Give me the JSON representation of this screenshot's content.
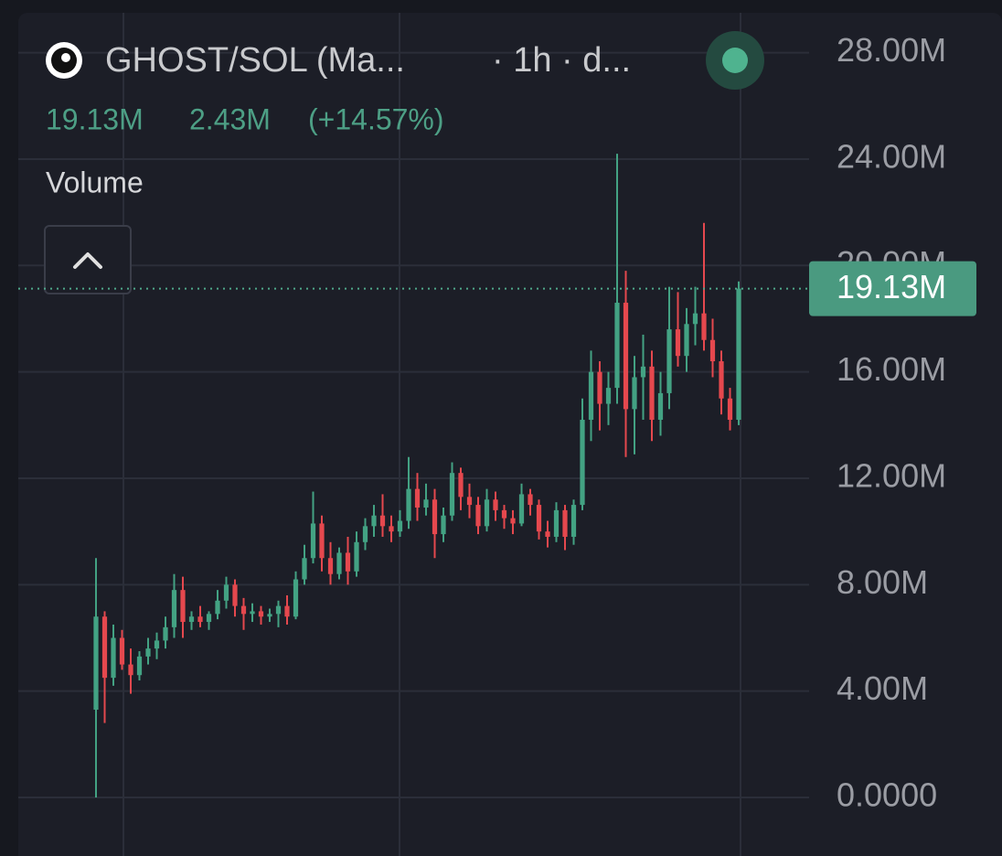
{
  "header": {
    "pair": "GHOST/SOL (Ma...",
    "interval": "· 1h · d...",
    "last": "19.13M",
    "change": "2.43M",
    "change_pct": "(+14.57%)",
    "indicator": "Volume"
  },
  "chart_data": {
    "type": "candlestick",
    "up_color": "#43a283",
    "down_color": "#e5484e",
    "ylim": [
      -2.2,
      29.5
    ],
    "yticks": [
      {
        "value": 0,
        "label": "0.0000"
      },
      {
        "value": 4,
        "label": "4.00M"
      },
      {
        "value": 8,
        "label": "8.00M"
      },
      {
        "value": 12,
        "label": "12.00M"
      },
      {
        "value": 16,
        "label": "16.00M"
      },
      {
        "value": 20,
        "label": "20.00M"
      },
      {
        "value": 24,
        "label": "24.00M"
      },
      {
        "value": 28,
        "label": "28.00M"
      }
    ],
    "grid": true,
    "price_line": {
      "value": 19.13,
      "label": "19.13M"
    },
    "open": [
      3.3,
      6.8,
      4.5,
      6.0,
      5.0,
      4.6,
      5.3,
      5.6,
      5.9,
      6.4,
      7.8,
      6.6,
      6.8,
      6.6,
      6.9,
      7.4,
      8.0,
      7.2,
      6.9,
      7.0,
      6.8,
      6.9,
      7.2,
      6.8,
      8.2,
      9.0,
      10.3,
      9.0,
      8.4,
      9.2,
      8.5,
      9.6,
      10.2,
      10.6,
      10.2,
      10.0,
      10.4,
      11.6,
      10.9,
      11.2,
      9.9,
      10.6,
      12.2,
      11.3,
      11.0,
      10.2,
      11.2,
      10.8,
      10.5,
      10.3,
      11.4,
      11.0,
      10.0,
      9.8,
      10.8,
      9.8,
      11.0,
      14.2,
      16.0,
      14.8,
      15.4,
      18.6,
      14.6,
      15.8,
      16.2,
      14.2,
      15.2,
      17.6,
      16.6,
      17.8,
      18.2,
      17.2,
      16.4,
      15.0,
      14.2
    ],
    "high": [
      9.0,
      7.0,
      6.5,
      6.3,
      5.6,
      5.5,
      6.0,
      6.2,
      6.8,
      8.4,
      8.3,
      7.0,
      7.2,
      7.0,
      7.8,
      8.3,
      8.2,
      7.5,
      7.3,
      7.2,
      7.1,
      7.4,
      7.6,
      8.5,
      9.5,
      11.5,
      10.6,
      9.6,
      9.4,
      9.8,
      10.0,
      10.5,
      11.0,
      11.4,
      10.6,
      10.8,
      12.8,
      12.2,
      11.8,
      11.6,
      10.9,
      12.6,
      12.4,
      11.8,
      11.3,
      11.6,
      11.5,
      11.0,
      10.8,
      11.8,
      11.6,
      11.2,
      10.4,
      11.1,
      11.0,
      11.2,
      15.0,
      16.8,
      16.4,
      16.0,
      24.2,
      19.8,
      16.6,
      17.4,
      16.8,
      16.0,
      19.2,
      19.0,
      18.4,
      19.2,
      21.6,
      18.0,
      16.8,
      15.4,
      19.4
    ],
    "low": [
      0.0,
      2.8,
      4.2,
      4.8,
      3.9,
      4.4,
      5.0,
      5.2,
      5.6,
      6.0,
      6.0,
      6.3,
      6.4,
      6.3,
      6.7,
      7.1,
      6.8,
      6.3,
      6.6,
      6.5,
      6.6,
      6.4,
      6.5,
      6.7,
      8.0,
      8.8,
      8.5,
      8.0,
      8.2,
      8.0,
      8.3,
      9.3,
      9.8,
      9.8,
      9.6,
      9.8,
      10.1,
      10.4,
      10.6,
      9.0,
      9.6,
      10.4,
      10.8,
      10.5,
      9.9,
      10.0,
      10.4,
      10.1,
      9.9,
      10.2,
      10.6,
      9.7,
      9.4,
      9.6,
      9.3,
      9.5,
      10.8,
      13.4,
      13.8,
      14.0,
      14.8,
      12.8,
      12.9,
      14.2,
      13.4,
      13.6,
      14.6,
      16.2,
      16.0,
      17.0,
      16.8,
      15.8,
      14.4,
      13.8,
      14.0
    ],
    "close": [
      6.8,
      4.5,
      6.0,
      5.0,
      4.6,
      5.3,
      5.6,
      5.9,
      6.4,
      7.8,
      6.6,
      6.8,
      6.6,
      6.9,
      7.4,
      8.0,
      7.2,
      6.9,
      7.0,
      6.8,
      6.9,
      7.2,
      6.8,
      8.2,
      9.0,
      10.3,
      9.0,
      8.4,
      9.2,
      8.5,
      9.6,
      10.2,
      10.6,
      10.2,
      10.0,
      10.4,
      11.6,
      10.9,
      11.2,
      9.9,
      10.6,
      12.2,
      11.3,
      11.0,
      10.2,
      11.2,
      10.8,
      10.5,
      10.3,
      11.4,
      11.0,
      10.0,
      9.8,
      10.8,
      9.8,
      11.0,
      14.2,
      16.0,
      14.8,
      15.4,
      18.6,
      14.6,
      15.8,
      16.2,
      14.2,
      15.2,
      17.6,
      16.6,
      17.8,
      18.2,
      17.2,
      16.4,
      15.0,
      14.2,
      19.13
    ]
  }
}
